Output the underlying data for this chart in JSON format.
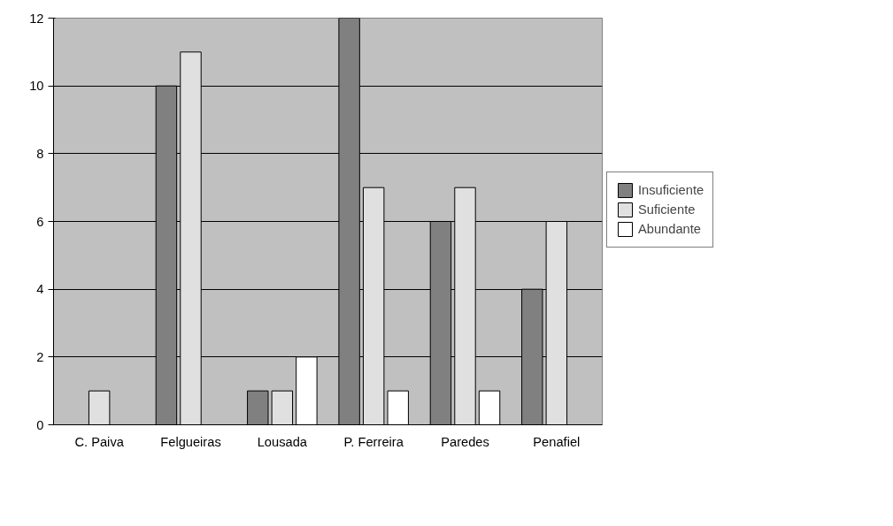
{
  "chart_data": {
    "type": "bar",
    "categories": [
      "C. Paiva",
      "Felgueiras",
      "Lousada",
      "P. Ferreira",
      "Paredes",
      "Penafiel"
    ],
    "series": [
      {
        "name": "Insuficiente",
        "color": "#808080",
        "values": [
          0,
          10,
          1,
          12,
          6,
          4
        ]
      },
      {
        "name": "Suficiente",
        "color": "#e0e0e0",
        "values": [
          1,
          11,
          1,
          7,
          7,
          6
        ]
      },
      {
        "name": "Abundante",
        "color": "#ffffff",
        "values": [
          0,
          0,
          2,
          1,
          1,
          0
        ]
      }
    ],
    "ylim": [
      0,
      12
    ],
    "yticks": [
      0,
      2,
      4,
      6,
      8,
      10,
      12
    ],
    "grid": "y",
    "legend": "right"
  }
}
